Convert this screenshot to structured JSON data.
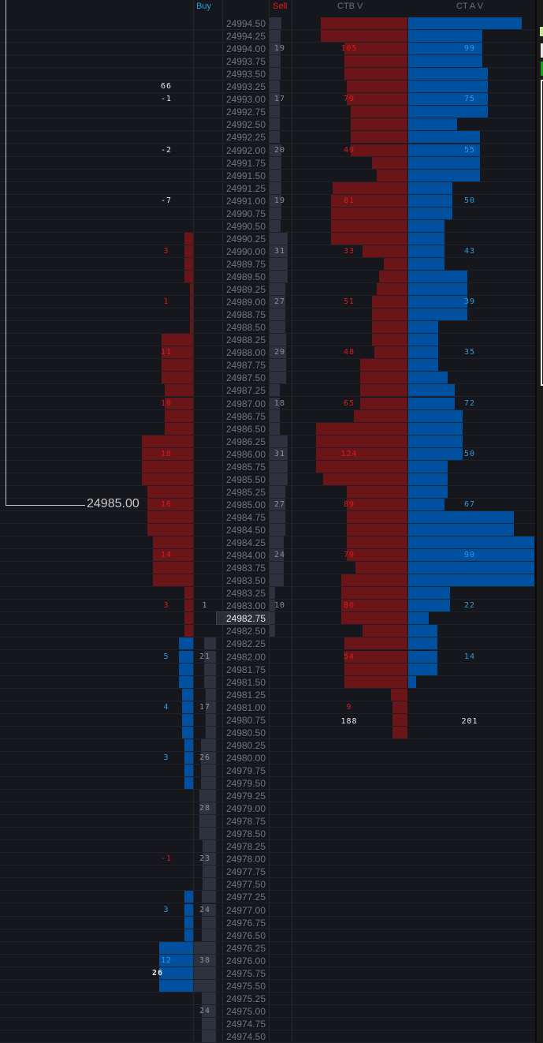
{
  "headers": {
    "buy": "Buy",
    "sell": "Sell",
    "ctbv": "CTB V",
    "ctav": "CT A V"
  },
  "last_price_label": "24985.00",
  "totals": {
    "ctbv": "188",
    "ctav": "201"
  },
  "colors": {
    "red_bar": "#6b1518",
    "blue_bar": "#0050a0",
    "gray_bar": "#2e323e",
    "red_text": "#d41c1c",
    "blue_text": "#2a9ae0",
    "white_text": "#e8e8e8",
    "gray_text": "#8a8f9a"
  },
  "rows": [
    {
      "p": "24994.50",
      "s": 63,
      "cb": 95,
      "ca": 90
    },
    {
      "p": "24994.25",
      "s": 58,
      "cb": 95,
      "ca": 59
    },
    {
      "p": "24994.00",
      "s": 58,
      "st": "19",
      "cb": 69,
      "ct": "105",
      "ca": 59,
      "at": "99"
    },
    {
      "p": "24993.75",
      "s": 58,
      "cb": 69,
      "ca": 59
    },
    {
      "p": "24993.50",
      "s": 58,
      "cb": 69,
      "ca": 63
    },
    {
      "p": "24993.25",
      "d": "66",
      "dc": "w",
      "s": 54,
      "cb": 66,
      "ca": 63
    },
    {
      "p": "24993.00",
      "d": "-1",
      "dc": "w",
      "s": 54,
      "st": "17",
      "cb": 66,
      "ct": "79",
      "ca": 63,
      "at": "75"
    },
    {
      "p": "24992.75",
      "s": 54,
      "cb": 62,
      "ca": 63
    },
    {
      "p": "24992.50",
      "s": 54,
      "cb": 62,
      "ca": 39
    },
    {
      "p": "24992.25",
      "s": 54,
      "cb": 62,
      "ca": 57
    },
    {
      "p": "24992.00",
      "d": "-2",
      "dc": "w",
      "s": 63,
      "st": "20",
      "cb": 62,
      "ct": "49",
      "ca": 57,
      "at": "55"
    },
    {
      "p": "24991.75",
      "s": 63,
      "cb": 39,
      "ca": 57
    },
    {
      "p": "24991.50",
      "s": 63,
      "cb": 34,
      "ca": 57
    },
    {
      "p": "24991.25",
      "s": 63,
      "cb": 82,
      "ca": 35
    },
    {
      "p": "24991.00",
      "d": "-7",
      "dc": "w",
      "s": 63,
      "st": "19",
      "cb": 84,
      "ct": "81",
      "ca": 35,
      "at": "50"
    },
    {
      "p": "24990.75",
      "s": 63,
      "cb": 84,
      "ca": 35
    },
    {
      "p": "24990.50",
      "s": 58,
      "cb": 84,
      "ca": 29
    },
    {
      "p": "24990.25",
      "db": 17,
      "dbc": "r",
      "s": 96,
      "cb": 84,
      "ca": 29
    },
    {
      "p": "24990.00",
      "d": "3",
      "dc": "r",
      "db": 17,
      "dbc": "r",
      "s": 96,
      "st": "31",
      "cb": 49,
      "ct": "33",
      "ca": 29,
      "at": "43"
    },
    {
      "p": "24989.75",
      "db": 17,
      "dbc": "r",
      "s": 96,
      "cb": 26,
      "ca": 29
    },
    {
      "p": "24989.50",
      "db": 17,
      "dbc": "r",
      "s": 96,
      "cb": 31,
      "ca": 47
    },
    {
      "p": "24989.25",
      "db": 6,
      "dbc": "r",
      "s": 83,
      "cb": 34,
      "ca": 47
    },
    {
      "p": "24989.00",
      "d": "1",
      "dc": "r",
      "db": 6,
      "dbc": "r",
      "s": 83,
      "st": "27",
      "cb": 39,
      "ct": "51",
      "ca": 47,
      "at": "39"
    },
    {
      "p": "24988.75",
      "db": 6,
      "dbc": "r",
      "s": 83,
      "cb": 39,
      "ca": 47
    },
    {
      "p": "24988.50",
      "db": 6,
      "dbc": "r",
      "s": 83,
      "cb": 39,
      "ca": 24
    },
    {
      "p": "24988.25",
      "db": 62,
      "dbc": "r",
      "s": 88,
      "cb": 39,
      "ca": 24
    },
    {
      "p": "24988.00",
      "d": "11",
      "dc": "r",
      "db": 62,
      "dbc": "r",
      "s": 88,
      "st": "29",
      "cb": 36,
      "ct": "48",
      "ca": 24,
      "at": "35"
    },
    {
      "p": "24987.75",
      "db": 62,
      "dbc": "r",
      "s": 88,
      "cb": 52,
      "ca": 24
    },
    {
      "p": "24987.50",
      "db": 62,
      "dbc": "r",
      "s": 88,
      "cb": 52,
      "ca": 31
    },
    {
      "p": "24987.25",
      "db": 55,
      "dbc": "r",
      "s": 54,
      "cb": 52,
      "ca": 37
    },
    {
      "p": "24987.00",
      "d": "10",
      "dc": "r",
      "db": 55,
      "dbc": "r",
      "s": 54,
      "st": "18",
      "cb": 52,
      "ct": "65",
      "ca": 37,
      "at": "72"
    },
    {
      "p": "24986.75",
      "db": 55,
      "dbc": "r",
      "s": 54,
      "cb": 59,
      "ca": 43
    },
    {
      "p": "24986.50",
      "db": 55,
      "dbc": "r",
      "s": 54,
      "cb": 100,
      "ca": 43
    },
    {
      "p": "24986.25",
      "db": 100,
      "dbc": "r",
      "s": 96,
      "cb": 100,
      "ca": 43
    },
    {
      "p": "24986.00",
      "d": "18",
      "dc": "r",
      "db": 100,
      "dbc": "r",
      "s": 96,
      "st": "31",
      "cb": 100,
      "ct": "124",
      "ca": 43,
      "at": "50"
    },
    {
      "p": "24985.75",
      "db": 100,
      "dbc": "r",
      "s": 96,
      "cb": 100,
      "ca": 31
    },
    {
      "p": "24985.50",
      "db": 100,
      "dbc": "r",
      "s": 96,
      "cb": 92,
      "ca": 31
    },
    {
      "p": "24985.25",
      "db": 89,
      "dbc": "r",
      "s": 83,
      "cb": 66,
      "ca": 31
    },
    {
      "p": "24985.00",
      "d": "16",
      "dc": "r",
      "db": 89,
      "dbc": "r",
      "s": 83,
      "st": "27",
      "cb": 66,
      "ct": "89",
      "ca": 29,
      "at": "67"
    },
    {
      "p": "24984.75",
      "db": 89,
      "dbc": "r",
      "s": 83,
      "cb": 66,
      "ca": 84
    },
    {
      "p": "24984.50",
      "db": 89,
      "dbc": "r",
      "s": 83,
      "cb": 66,
      "ca": 84
    },
    {
      "p": "24984.25",
      "db": 78,
      "dbc": "r",
      "s": 75,
      "cb": 66,
      "ca": 100
    },
    {
      "p": "24984.00",
      "d": "14",
      "dc": "r",
      "db": 78,
      "dbc": "r",
      "s": 75,
      "st": "24",
      "cb": 66,
      "ct": "79",
      "ca": 100,
      "at": "90"
    },
    {
      "p": "24983.75",
      "db": 78,
      "dbc": "r",
      "s": 75,
      "cb": 57,
      "ca": 100
    },
    {
      "p": "24983.50",
      "db": 78,
      "dbc": "r",
      "s": 75,
      "cb": 72,
      "ca": 100
    },
    {
      "p": "24983.25",
      "db": 17,
      "dbc": "r",
      "s": 29,
      "cb": 72,
      "ca": 33
    },
    {
      "p": "24983.00",
      "d": "3",
      "dc": "r",
      "db": 17,
      "dbc": "r",
      "bt": "1",
      "s": 29,
      "st": "10",
      "cb": 72,
      "ct": "80",
      "ca": 33,
      "at": "22"
    },
    {
      "p": "24982.75",
      "hl": true,
      "db": 17,
      "dbc": "r",
      "s": 29,
      "cb": 72,
      "ca": 16
    },
    {
      "p": "24982.50",
      "db": 17,
      "dbc": "r",
      "s": 29,
      "cb": 49,
      "ca": 23
    },
    {
      "p": "24982.25",
      "db": 28,
      "dbc": "b",
      "bb": 54,
      "cb": 69,
      "ca": 23
    },
    {
      "p": "24982.00",
      "d": "5",
      "dc": "b",
      "db": 28,
      "dbc": "b",
      "bb": 54,
      "bt": "21",
      "cb": 69,
      "ct": "54",
      "ca": 23,
      "at": "14"
    },
    {
      "p": "24981.75",
      "db": 28,
      "dbc": "b",
      "bb": 54,
      "cb": 69,
      "ca": 23
    },
    {
      "p": "24981.50",
      "db": 28,
      "dbc": "b",
      "bb": 54,
      "cb": 69,
      "ca": 6
    },
    {
      "p": "24981.25",
      "db": 22,
      "dbc": "b",
      "bb": 46,
      "cb": 18
    },
    {
      "p": "24981.00",
      "d": "4",
      "dc": "b",
      "db": 22,
      "dbc": "b",
      "bb": 46,
      "bt": "17",
      "cb": 16,
      "ct": "9"
    },
    {
      "p": "24980.75",
      "db": 22,
      "dbc": "b",
      "bb": 46,
      "cb": 16,
      "totals": true
    },
    {
      "p": "24980.50",
      "db": 22,
      "dbc": "b",
      "bb": 46,
      "cb": 16
    },
    {
      "p": "24980.25",
      "db": 17,
      "dbc": "b",
      "bb": 68
    },
    {
      "p": "24980.00",
      "d": "3",
      "dc": "b",
      "db": 17,
      "dbc": "b",
      "bb": 68,
      "bt": "26"
    },
    {
      "p": "24979.75",
      "db": 17,
      "dbc": "b",
      "bb": 68
    },
    {
      "p": "24979.50",
      "db": 17,
      "dbc": "b",
      "bb": 68
    },
    {
      "p": "24979.25",
      "bb": 75
    },
    {
      "p": "24979.00",
      "bb": 75,
      "bt": "28"
    },
    {
      "p": "24978.75",
      "bb": 75
    },
    {
      "p": "24978.50",
      "bb": 75
    },
    {
      "p": "24978.25",
      "bb": 61
    },
    {
      "p": "24978.00",
      "d": "-1",
      "dc": "r",
      "bb": 61,
      "bt": "23"
    },
    {
      "p": "24977.75",
      "bb": 61
    },
    {
      "p": "24977.50",
      "bb": 61
    },
    {
      "p": "24977.25",
      "db": 17,
      "dbc": "b",
      "bb": 64
    },
    {
      "p": "24977.00",
      "d": "3",
      "dc": "b",
      "db": 17,
      "dbc": "b",
      "bb": 64,
      "bt": "24"
    },
    {
      "p": "24976.75",
      "db": 17,
      "dbc": "b",
      "bb": 64
    },
    {
      "p": "24976.50",
      "db": 17,
      "dbc": "b",
      "bb": 64
    },
    {
      "p": "24976.25",
      "db": 66,
      "dbc": "b",
      "bb": 100
    },
    {
      "p": "24976.00",
      "d": "12",
      "dc": "b",
      "db": 66,
      "dbc": "b",
      "bb": 100,
      "bt": "38"
    },
    {
      "p": "24975.75",
      "d": "26",
      "dc": "w",
      "db": 66,
      "dbc": "b",
      "bb": 100
    },
    {
      "p": "24975.50",
      "db": 66,
      "dbc": "b",
      "bb": 100
    },
    {
      "p": "24975.25",
      "bb": 64
    },
    {
      "p": "24975.00",
      "bb": 64,
      "bt": "24"
    },
    {
      "p": "24974.75",
      "bb": 64
    },
    {
      "p": "24974.50",
      "bb": 64
    }
  ]
}
